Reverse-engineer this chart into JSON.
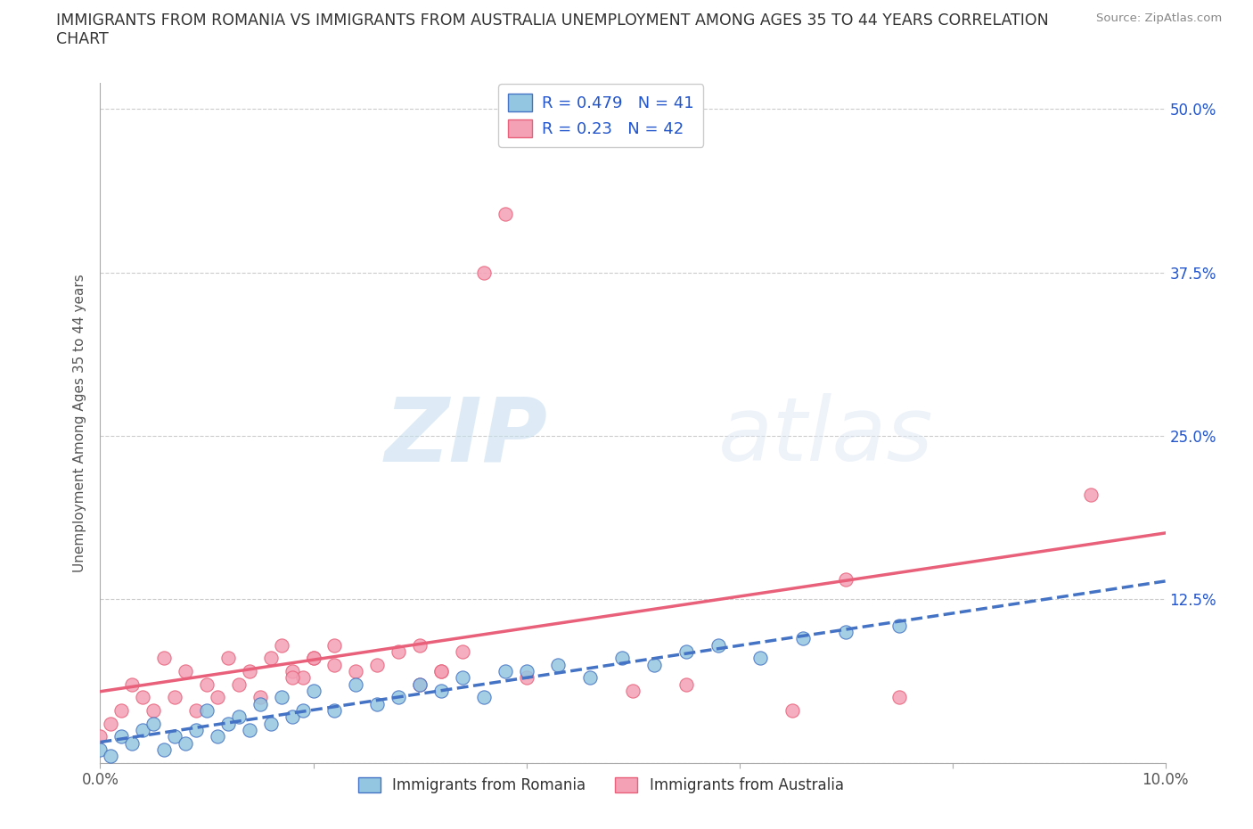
{
  "title_line1": "IMMIGRANTS FROM ROMANIA VS IMMIGRANTS FROM AUSTRALIA UNEMPLOYMENT AMONG AGES 35 TO 44 YEARS CORRELATION",
  "title_line2": "CHART",
  "source": "Source: ZipAtlas.com",
  "ylabel": "Unemployment Among Ages 35 to 44 years",
  "xlim": [
    0.0,
    0.1
  ],
  "ylim": [
    0.0,
    0.52
  ],
  "xticks": [
    0.0,
    0.02,
    0.04,
    0.06,
    0.08,
    0.1
  ],
  "xticklabels": [
    "0.0%",
    "",
    "",
    "",
    "",
    "10.0%"
  ],
  "yticks": [
    0.0,
    0.125,
    0.25,
    0.375,
    0.5
  ],
  "yticklabels": [
    "",
    "12.5%",
    "25.0%",
    "37.5%",
    "50.0%"
  ],
  "romania_color": "#93C6E0",
  "romania_line_color": "#4472C4",
  "australia_color": "#F4A0B5",
  "australia_line_color": "#E8607A",
  "romania_R": 0.479,
  "romania_N": 41,
  "australia_R": 0.23,
  "australia_N": 42,
  "watermark_zip": "ZIP",
  "watermark_atlas": "atlas",
  "legend_color": "#2255CC",
  "romania_scatter_x": [
    0.0,
    0.001,
    0.002,
    0.003,
    0.004,
    0.005,
    0.006,
    0.007,
    0.008,
    0.009,
    0.01,
    0.011,
    0.012,
    0.013,
    0.014,
    0.015,
    0.016,
    0.017,
    0.018,
    0.019,
    0.02,
    0.022,
    0.024,
    0.026,
    0.028,
    0.03,
    0.032,
    0.034,
    0.036,
    0.038,
    0.04,
    0.043,
    0.046,
    0.049,
    0.052,
    0.055,
    0.058,
    0.062,
    0.066,
    0.07,
    0.075
  ],
  "romania_scatter_y": [
    0.01,
    0.005,
    0.02,
    0.015,
    0.025,
    0.03,
    0.01,
    0.02,
    0.015,
    0.025,
    0.04,
    0.02,
    0.03,
    0.035,
    0.025,
    0.045,
    0.03,
    0.05,
    0.035,
    0.04,
    0.055,
    0.04,
    0.06,
    0.045,
    0.05,
    0.06,
    0.055,
    0.065,
    0.05,
    0.07,
    0.07,
    0.075,
    0.065,
    0.08,
    0.075,
    0.085,
    0.09,
    0.08,
    0.095,
    0.1,
    0.105
  ],
  "australia_scatter_x": [
    0.0,
    0.001,
    0.002,
    0.003,
    0.004,
    0.005,
    0.006,
    0.007,
    0.008,
    0.009,
    0.01,
    0.011,
    0.012,
    0.013,
    0.014,
    0.015,
    0.016,
    0.017,
    0.018,
    0.019,
    0.02,
    0.022,
    0.024,
    0.026,
    0.028,
    0.03,
    0.032,
    0.034,
    0.036,
    0.038,
    0.018,
    0.02,
    0.022,
    0.03,
    0.032,
    0.04,
    0.05,
    0.055,
    0.065,
    0.07,
    0.075,
    0.093
  ],
  "australia_scatter_y": [
    0.02,
    0.03,
    0.04,
    0.06,
    0.05,
    0.04,
    0.08,
    0.05,
    0.07,
    0.04,
    0.06,
    0.05,
    0.08,
    0.06,
    0.07,
    0.05,
    0.08,
    0.09,
    0.07,
    0.065,
    0.08,
    0.09,
    0.07,
    0.075,
    0.085,
    0.09,
    0.07,
    0.085,
    0.375,
    0.42,
    0.065,
    0.08,
    0.075,
    0.06,
    0.07,
    0.065,
    0.055,
    0.06,
    0.04,
    0.14,
    0.05,
    0.205
  ],
  "bg_color": "#ffffff",
  "grid_color": "#cccccc"
}
